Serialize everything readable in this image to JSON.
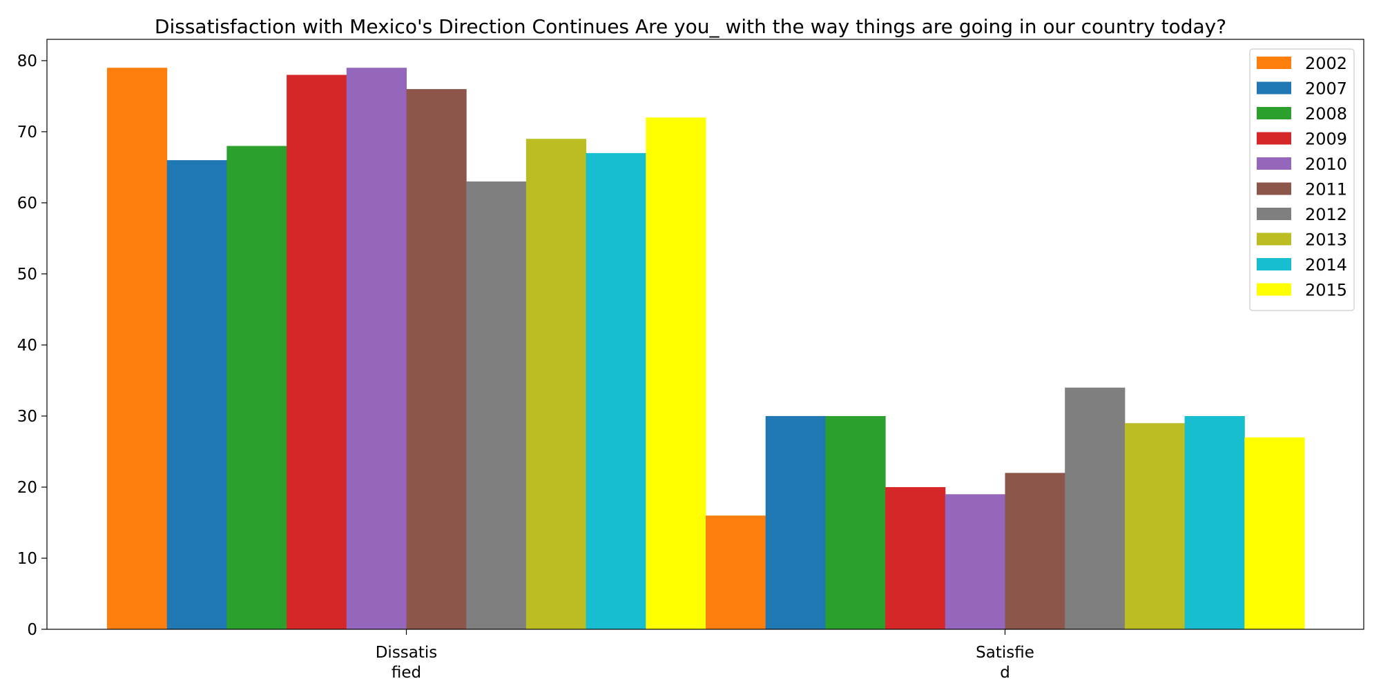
{
  "chart_data": {
    "type": "bar",
    "title": "Dissatisfaction with Mexico's Direction Continues Are you_ with the way things are going in our country today?",
    "xlabel": "",
    "ylabel": "",
    "categories": [
      [
        "Dissatis",
        "fied"
      ],
      [
        "Satisfie",
        "d"
      ]
    ],
    "ylim": [
      0,
      83
    ],
    "yticks": [
      0,
      10,
      20,
      30,
      40,
      50,
      60,
      70,
      80
    ],
    "grid": false,
    "legend_position": "top-right",
    "series": [
      {
        "name": "2002",
        "color": "#ff7f0e",
        "values": [
          79,
          16
        ]
      },
      {
        "name": "2007",
        "color": "#1f77b4",
        "values": [
          66,
          30
        ]
      },
      {
        "name": "2008",
        "color": "#2ca02c",
        "values": [
          68,
          30
        ]
      },
      {
        "name": "2009",
        "color": "#d62728",
        "values": [
          78,
          20
        ]
      },
      {
        "name": "2010",
        "color": "#9467bd",
        "values": [
          79,
          19
        ]
      },
      {
        "name": "2011",
        "color": "#8c564b",
        "values": [
          76,
          22
        ]
      },
      {
        "name": "2012",
        "color": "#7f7f7f",
        "values": [
          63,
          34
        ]
      },
      {
        "name": "2013",
        "color": "#bcbd22",
        "values": [
          69,
          29
        ]
      },
      {
        "name": "2014",
        "color": "#17becf",
        "values": [
          67,
          30
        ]
      },
      {
        "name": "2015",
        "color": "#ffff00",
        "values": [
          72,
          27
        ]
      }
    ]
  }
}
